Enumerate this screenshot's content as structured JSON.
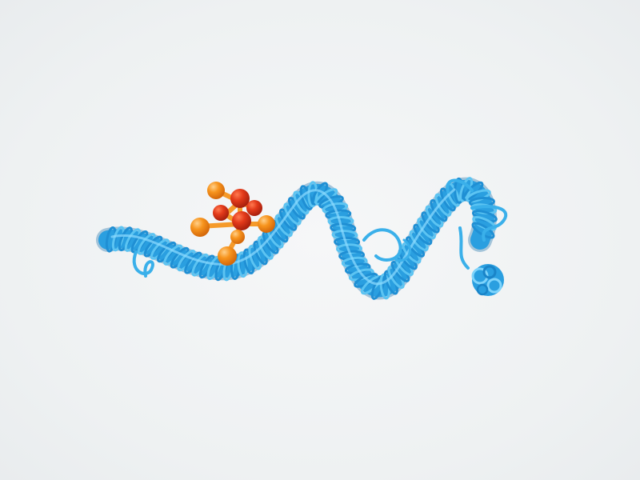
{
  "image": {
    "subject": "protein-ribbon-with-ligand-cluster",
    "colors": {
      "background": "#f2f4f5",
      "ribbon_main": "#2a9fe0",
      "ribbon_light": "#5cc4f2",
      "ribbon_dark": "#1576b8",
      "ligand_orange": "#f28a1c",
      "ligand_light": "#ffb347",
      "ligand_red": "#e0301a",
      "ligand_dark_red": "#b0200f"
    }
  }
}
